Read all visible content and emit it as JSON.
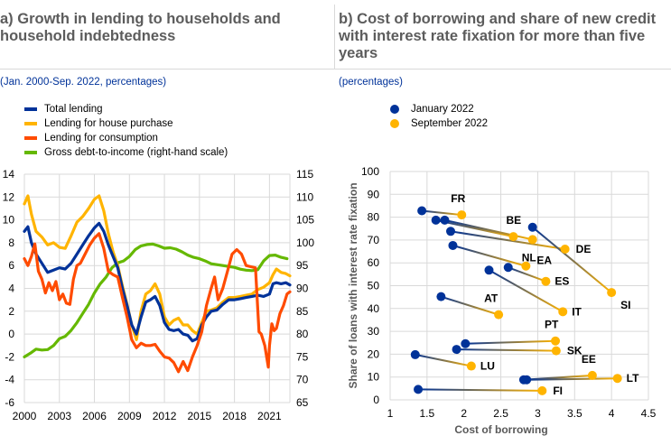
{
  "panel_a": {
    "title": "a) Growth in lending to households and household indebtedness",
    "subtitle": "(Jan. 2000-Sep. 2022, percentages)",
    "legend": [
      {
        "label": "Total lending",
        "color": "#003299"
      },
      {
        "label": "Lending for house purchase",
        "color": "#FFB400"
      },
      {
        "label": "Lending for consumption",
        "color": "#FF4B00"
      },
      {
        "label": "Gross debt-to-income (right-hand scale)",
        "color": "#65B800"
      }
    ]
  },
  "panel_b": {
    "title": "b) Cost of borrowing and share of new credit with interest rate fixation for more than five years",
    "subtitle": "(percentages)",
    "legend": [
      {
        "label": "January 2022",
        "color": "#003299"
      },
      {
        "label": "September 2022",
        "color": "#FFB400"
      }
    ]
  },
  "chart_data": [
    {
      "type": "line",
      "title": "a) Growth in lending to households and household indebtedness",
      "subtitle": "(Jan. 2000-Sep. 2022, percentages)",
      "xlabel": "",
      "ylabel": "",
      "x_range": [
        2000,
        2022.75
      ],
      "xticks": [
        "2000",
        "2003",
        "2006",
        "2009",
        "2012",
        "2015",
        "2018",
        "2021"
      ],
      "ylim": [
        -6,
        14
      ],
      "yticks": [
        "14",
        "12",
        "10",
        "8",
        "6",
        "4",
        "2",
        "0",
        "-2",
        "-4",
        "-6"
      ],
      "ylim_right": [
        65,
        115
      ],
      "yticks_right": [
        "115",
        "110",
        "105",
        "100",
        "95",
        "90",
        "85",
        "80",
        "75",
        "70",
        "65"
      ],
      "grid": true,
      "legend_position": "top",
      "series": [
        {
          "name": "Total lending",
          "axis": "left",
          "color": "#003299",
          "x": [
            2000.0,
            2000.3,
            2000.6,
            2001.0,
            2001.5,
            2002.0,
            2002.5,
            2003.0,
            2003.5,
            2004.0,
            2004.5,
            2005.0,
            2005.5,
            2006.0,
            2006.4,
            2006.8,
            2007.2,
            2007.6,
            2008.0,
            2008.4,
            2008.8,
            2009.2,
            2009.6,
            2010.0,
            2010.4,
            2010.8,
            2011.2,
            2011.6,
            2012.0,
            2012.4,
            2012.8,
            2013.2,
            2013.6,
            2014.0,
            2014.4,
            2014.8,
            2015.2,
            2015.6,
            2016.0,
            2016.5,
            2017.0,
            2017.5,
            2018.0,
            2018.5,
            2019.0,
            2019.5,
            2020.0,
            2020.5,
            2021.0,
            2021.3,
            2021.6,
            2022.0,
            2022.4,
            2022.75
          ],
          "y": [
            9.0,
            9.4,
            8.0,
            7.0,
            6.2,
            5.4,
            5.6,
            5.8,
            5.7,
            6.2,
            7.0,
            7.8,
            8.6,
            9.3,
            9.7,
            9.0,
            7.8,
            6.8,
            5.8,
            4.0,
            2.5,
            0.8,
            0.0,
            1.5,
            2.8,
            3.0,
            3.3,
            2.5,
            1.0,
            0.4,
            0.3,
            0.4,
            0.0,
            -0.1,
            -0.6,
            -0.4,
            0.8,
            1.5,
            2.0,
            2.1,
            2.6,
            3.0,
            3.0,
            3.1,
            3.2,
            3.3,
            3.4,
            3.3,
            3.5,
            4.4,
            4.5,
            4.4,
            4.5,
            4.3
          ]
        },
        {
          "name": "Lending for house purchase",
          "axis": "left",
          "color": "#FFB400",
          "x": [
            2000.0,
            2000.3,
            2000.6,
            2001.0,
            2001.5,
            2002.0,
            2002.5,
            2003.0,
            2003.5,
            2004.0,
            2004.5,
            2005.0,
            2005.5,
            2006.0,
            2006.4,
            2006.8,
            2007.2,
            2007.6,
            2008.0,
            2008.4,
            2008.8,
            2009.2,
            2009.6,
            2010.0,
            2010.4,
            2010.8,
            2011.2,
            2011.6,
            2012.0,
            2012.4,
            2012.8,
            2013.2,
            2013.6,
            2014.0,
            2014.4,
            2014.8,
            2015.2,
            2015.6,
            2016.0,
            2016.5,
            2017.0,
            2017.5,
            2018.0,
            2018.5,
            2019.0,
            2019.5,
            2020.0,
            2020.5,
            2021.0,
            2021.3,
            2021.6,
            2022.0,
            2022.4,
            2022.75
          ],
          "y": [
            11.4,
            12.1,
            10.5,
            9.0,
            8.5,
            7.8,
            8.0,
            7.6,
            7.5,
            8.6,
            9.8,
            10.3,
            11.0,
            11.8,
            12.1,
            10.8,
            8.8,
            7.2,
            6.0,
            4.2,
            2.6,
            0.8,
            -0.5,
            2.0,
            3.5,
            3.8,
            4.4,
            3.5,
            1.5,
            0.8,
            1.2,
            1.4,
            0.8,
            0.8,
            0.3,
            0.0,
            1.0,
            2.0,
            2.1,
            2.3,
            2.8,
            3.2,
            3.2,
            3.3,
            3.4,
            3.5,
            3.9,
            4.1,
            4.5,
            5.2,
            5.7,
            5.4,
            5.3,
            5.1
          ]
        },
        {
          "name": "Lending for consumption",
          "axis": "left",
          "color": "#FF4B00",
          "x": [
            2000.0,
            2000.3,
            2000.6,
            2000.9,
            2001.2,
            2001.5,
            2001.8,
            2002.1,
            2002.4,
            2002.7,
            2003.0,
            2003.3,
            2003.6,
            2003.9,
            2004.2,
            2004.5,
            2004.8,
            2005.2,
            2005.6,
            2006.0,
            2006.4,
            2006.8,
            2007.2,
            2007.6,
            2008.0,
            2008.4,
            2008.8,
            2009.2,
            2009.6,
            2010.0,
            2010.4,
            2010.8,
            2011.2,
            2011.6,
            2012.0,
            2012.4,
            2012.8,
            2013.2,
            2013.6,
            2014.0,
            2014.4,
            2014.8,
            2015.2,
            2015.6,
            2016.0,
            2016.3,
            2016.6,
            2017.0,
            2017.4,
            2017.8,
            2018.2,
            2018.6,
            2019.0,
            2019.4,
            2019.8,
            2020.1,
            2020.3,
            2020.6,
            2020.9,
            2021.0,
            2021.2,
            2021.4,
            2021.6,
            2021.9,
            2022.2,
            2022.5,
            2022.75
          ],
          "y": [
            6.6,
            6.0,
            6.8,
            7.9,
            5.5,
            4.8,
            3.6,
            4.5,
            3.8,
            4.6,
            3.0,
            3.5,
            2.7,
            2.6,
            4.8,
            6.0,
            6.2,
            7.0,
            7.8,
            8.4,
            8.8,
            7.5,
            5.5,
            5.2,
            5.0,
            3.2,
            1.5,
            -0.5,
            -1.2,
            -0.8,
            -1.0,
            -1.0,
            -0.9,
            -1.5,
            -2.0,
            -2.1,
            -2.5,
            -3.3,
            -2.4,
            -3.2,
            -2.0,
            -1.0,
            0.2,
            2.5,
            4.0,
            5.0,
            3.0,
            4.0,
            5.5,
            7.0,
            7.4,
            7.0,
            6.0,
            5.9,
            5.8,
            0.2,
            0.0,
            -1.0,
            -2.9,
            -1.0,
            0.9,
            0.3,
            0.5,
            1.8,
            2.5,
            3.5,
            3.7
          ]
        },
        {
          "name": "Gross debt-to-income (right-hand scale)",
          "axis": "right",
          "color": "#65B800",
          "x": [
            2000.0,
            2000.5,
            2001.0,
            2001.5,
            2002.0,
            2002.5,
            2003.0,
            2003.5,
            2004.0,
            2004.5,
            2005.0,
            2005.5,
            2006.0,
            2006.5,
            2007.0,
            2007.5,
            2008.0,
            2008.5,
            2009.0,
            2009.5,
            2010.0,
            2010.5,
            2011.0,
            2011.5,
            2012.0,
            2012.5,
            2013.0,
            2013.5,
            2014.0,
            2014.5,
            2015.0,
            2015.5,
            2016.0,
            2016.5,
            2017.0,
            2017.5,
            2018.0,
            2018.5,
            2019.0,
            2019.5,
            2020.0,
            2020.5,
            2021.0,
            2021.5,
            2022.0,
            2022.5
          ],
          "y": [
            75.0,
            75.8,
            76.7,
            76.5,
            76.6,
            77.5,
            79.0,
            79.5,
            80.8,
            82.5,
            84.5,
            86.5,
            89.0,
            91.0,
            92.5,
            94.5,
            95.6,
            96.0,
            97.0,
            98.5,
            99.3,
            99.6,
            99.7,
            99.3,
            98.8,
            98.9,
            98.6,
            98.0,
            97.3,
            96.8,
            96.5,
            96.0,
            95.4,
            95.2,
            95.0,
            94.8,
            94.6,
            94.2,
            94.0,
            93.9,
            94.1,
            96.0,
            97.2,
            97.3,
            96.8,
            96.5
          ]
        }
      ]
    },
    {
      "type": "scatter",
      "title": "b) Cost of borrowing and share of new credit with interest rate fixation for more than five years",
      "subtitle": "(percentages)",
      "xlabel": "Cost of borrowing",
      "ylabel": "Share of loans with interest rate fixation",
      "xlim": [
        1,
        4.5
      ],
      "xticks": [
        "1",
        "1.5",
        "2",
        "2.5",
        "3",
        "3.5",
        "4",
        "4.5"
      ],
      "ylim": [
        0,
        100
      ],
      "yticks": [
        "100",
        "90",
        "80",
        "70",
        "60",
        "50",
        "40",
        "30",
        "20",
        "10",
        "0"
      ],
      "grid": true,
      "legend_position": "top",
      "series_names": [
        "January 2022",
        "September 2022"
      ],
      "points": [
        {
          "country": "FR",
          "jan": [
            1.43,
            82.8
          ],
          "sep": [
            1.97,
            81.0
          ]
        },
        {
          "country": "BE",
          "jan": [
            1.62,
            78.7
          ],
          "sep": [
            2.67,
            71.5
          ]
        },
        {
          "country": "NL",
          "jan": [
            1.74,
            78.7
          ],
          "sep": [
            2.93,
            70.2
          ]
        },
        {
          "country": "DE",
          "jan": [
            1.82,
            73.8
          ],
          "sep": [
            3.37,
            66.0
          ]
        },
        {
          "country": "SI",
          "jan": [
            2.93,
            75.6
          ],
          "sep": [
            4.0,
            47.0
          ]
        },
        {
          "country": "EA",
          "jan": [
            1.85,
            67.6
          ],
          "sep": [
            2.84,
            58.6
          ]
        },
        {
          "country": "ES",
          "jan": [
            2.6,
            58.0
          ],
          "sep": [
            3.11,
            51.9
          ]
        },
        {
          "country": "IT",
          "jan": [
            2.34,
            56.8
          ],
          "sep": [
            3.34,
            38.6
          ]
        },
        {
          "country": "AT",
          "jan": [
            1.69,
            45.2
          ],
          "sep": [
            2.47,
            37.3
          ]
        },
        {
          "country": "PT",
          "jan": [
            2.02,
            24.6
          ],
          "sep": [
            3.24,
            25.8
          ]
        },
        {
          "country": "SK",
          "jan": [
            1.9,
            22.1
          ],
          "sep": [
            3.25,
            21.5
          ]
        },
        {
          "country": "LU",
          "jan": [
            1.34,
            19.8
          ],
          "sep": [
            2.1,
            14.8
          ]
        },
        {
          "country": "EE",
          "jan": [
            2.81,
            8.8
          ],
          "sep": [
            3.74,
            10.7
          ]
        },
        {
          "country": "LT",
          "jan": [
            2.85,
            8.8
          ],
          "sep": [
            4.08,
            9.4
          ]
        },
        {
          "country": "FI",
          "jan": [
            1.38,
            4.6
          ],
          "sep": [
            3.06,
            4.0
          ]
        }
      ]
    }
  ]
}
